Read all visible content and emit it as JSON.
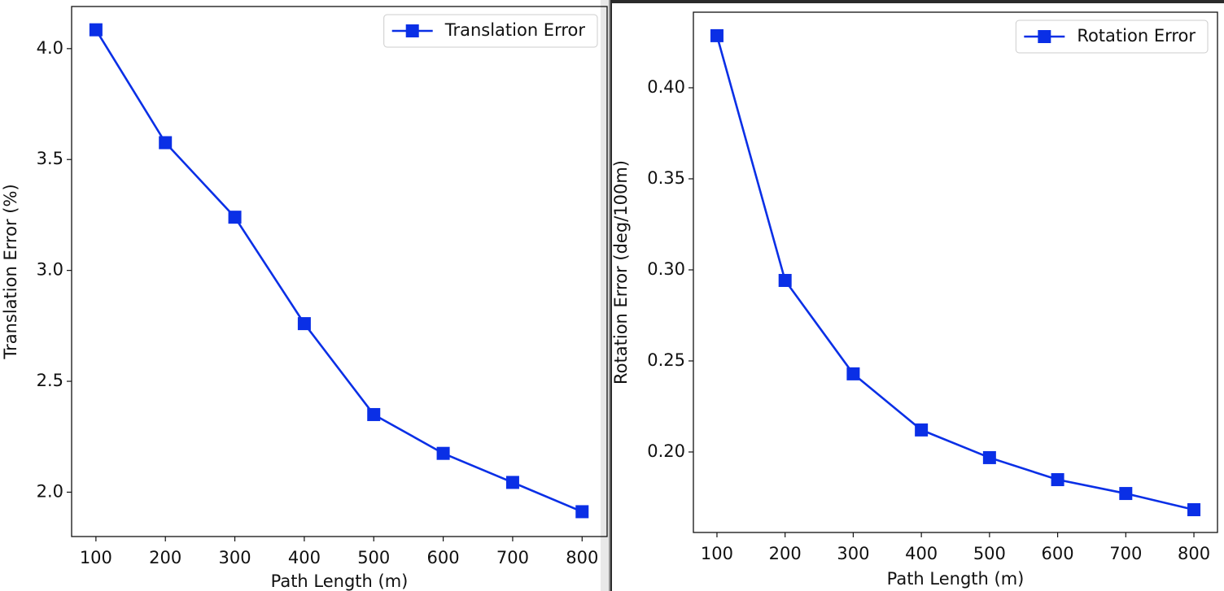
{
  "chart_data": [
    {
      "type": "line",
      "xlabel": "Path Length (m)",
      "ylabel": "Translation Error (%)",
      "x": [
        100,
        200,
        300,
        400,
        500,
        600,
        700,
        800
      ],
      "series": [
        {
          "name": "Translation Error",
          "color": "#0a2fe6",
          "values": [
            4.085,
            3.576,
            3.24,
            2.76,
            2.35,
            2.175,
            2.044,
            1.912
          ]
        }
      ],
      "xlim": [
        65,
        836
      ],
      "ylim": [
        1.8,
        4.19
      ],
      "xticks": [
        100,
        200,
        300,
        400,
        500,
        600,
        700,
        800
      ],
      "yticks": [
        {
          "value": 2.0,
          "label": "2.0"
        },
        {
          "value": 2.5,
          "label": "2.5"
        },
        {
          "value": 3.0,
          "label": "3.0"
        },
        {
          "value": 3.5,
          "label": "3.5"
        },
        {
          "value": 4.0,
          "label": "4.0"
        }
      ],
      "legend": "upper right",
      "marker": "square",
      "grid": false
    },
    {
      "type": "line",
      "xlabel": "Path Length (m)",
      "ylabel": "Rotation Error (deg/100m)",
      "x": [
        100,
        200,
        300,
        400,
        500,
        600,
        700,
        800
      ],
      "series": [
        {
          "name": "Rotation Error",
          "color": "#0a2fe6",
          "values": [
            0.4286,
            0.2942,
            0.2429,
            0.2121,
            0.1969,
            0.1848,
            0.1772,
            0.1683
          ]
        }
      ],
      "xlim": [
        65.4,
        834.6
      ],
      "ylim": [
        0.1558,
        0.4415
      ],
      "xticks": [
        100,
        200,
        300,
        400,
        500,
        600,
        700,
        800
      ],
      "yticks": [
        {
          "value": 0.2,
          "label": "0.20"
        },
        {
          "value": 0.25,
          "label": "0.25"
        },
        {
          "value": 0.3,
          "label": "0.30"
        },
        {
          "value": 0.35,
          "label": "0.35"
        },
        {
          "value": 0.4,
          "label": "0.40"
        }
      ],
      "legend": "upper right",
      "marker": "square",
      "grid": false
    }
  ]
}
